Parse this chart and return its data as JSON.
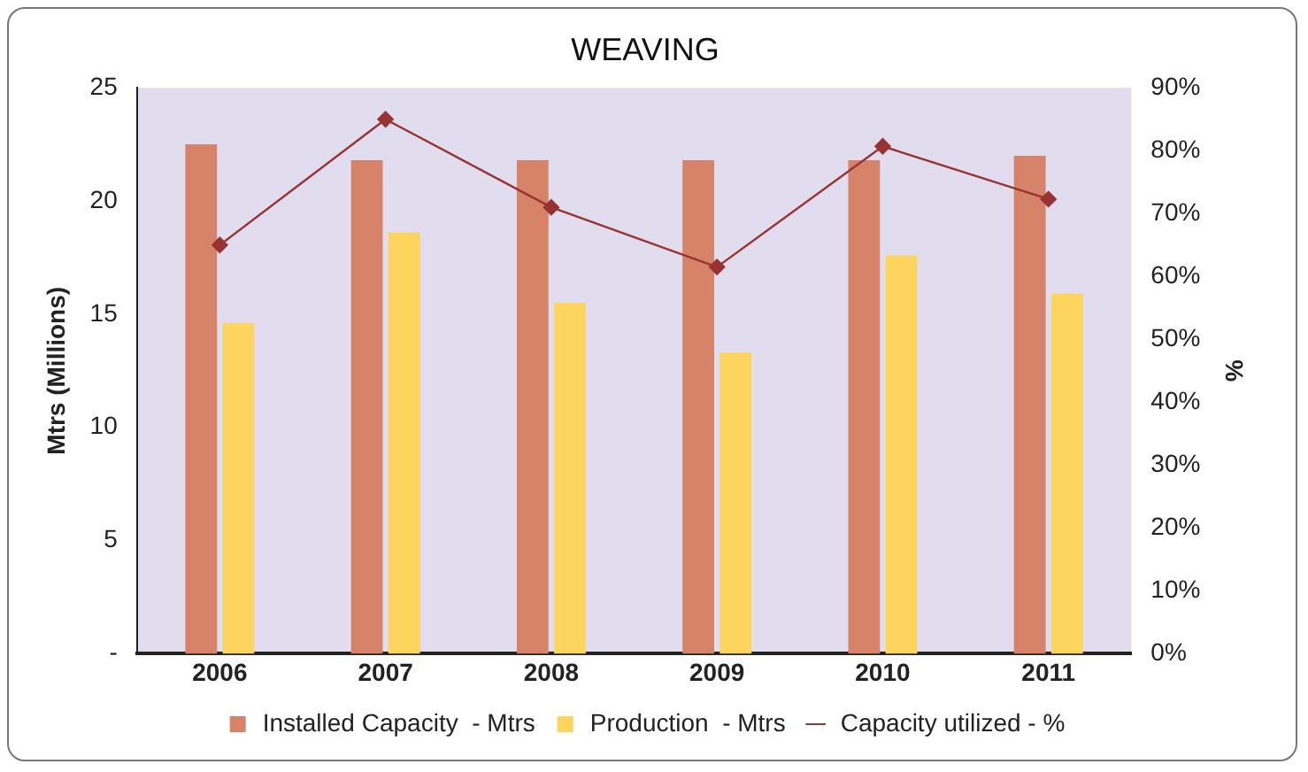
{
  "chart_data": {
    "type": "bar",
    "title": "WEAVING",
    "ylabel": "Mtrs (Millions)",
    "y2label": "%",
    "categories": [
      "2006",
      "2007",
      "2008",
      "2009",
      "2010",
      "2011"
    ],
    "series": [
      {
        "name": "Installed Capacity  - Mtrs",
        "color": "#d6836a",
        "values": [
          22.5,
          21.8,
          21.8,
          21.8,
          21.8,
          22.0
        ]
      },
      {
        "name": "Production  - Mtrs",
        "color": "#fdd55e",
        "values": [
          14.6,
          18.6,
          15.5,
          13.3,
          17.6,
          15.9
        ]
      },
      {
        "name": "Capacity utilized - %",
        "type": "line",
        "axis": "y2",
        "color": "#993333",
        "marker": "diamond",
        "values": [
          65,
          85,
          71,
          61.5,
          80.7,
          72.3
        ]
      }
    ],
    "ylim": [
      0,
      25
    ],
    "yticks": [
      {
        "value": 0,
        "label": "-"
      },
      5,
      10,
      15,
      20,
      25
    ],
    "y2lim": [
      0,
      90
    ],
    "y2ticks": [
      {
        "value": 0,
        "label": "0%"
      },
      {
        "value": 10,
        "label": "10%"
      },
      {
        "value": 20,
        "label": "20%"
      },
      {
        "value": 30,
        "label": "30%"
      },
      {
        "value": 40,
        "label": "40%"
      },
      {
        "value": 50,
        "label": "50%"
      },
      {
        "value": 60,
        "label": "60%"
      },
      {
        "value": 70,
        "label": "70%"
      },
      {
        "value": 80,
        "label": "80%"
      },
      {
        "value": 90,
        "label": "90%"
      }
    ],
    "grid": false,
    "legend": "bottom"
  }
}
